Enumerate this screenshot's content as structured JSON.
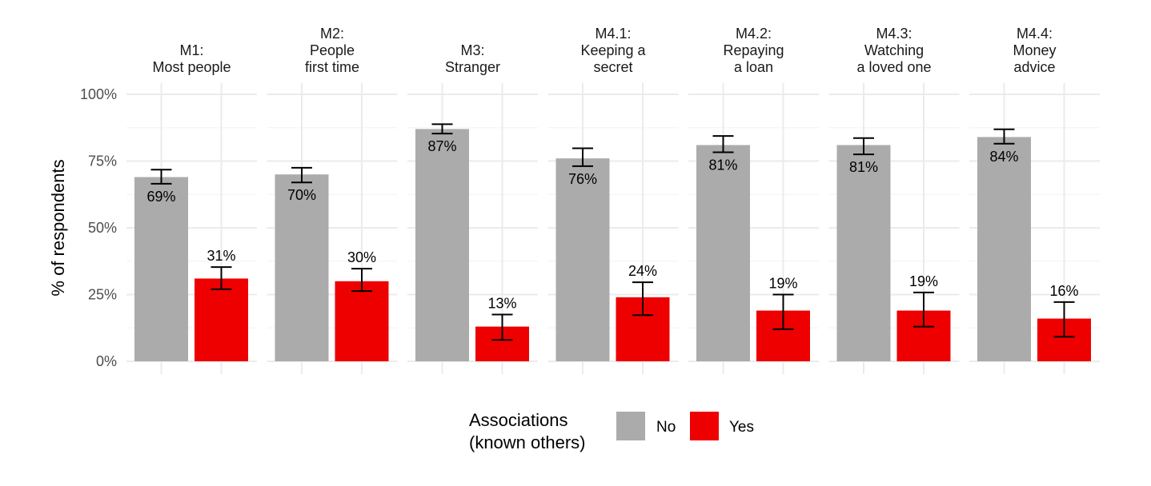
{
  "chart_data": {
    "type": "bar",
    "ylabel": "% of respondents",
    "ylim": [
      0,
      100
    ],
    "yticks": [
      0,
      25,
      50,
      75,
      100
    ],
    "ytick_labels": [
      "0%",
      "25%",
      "50%",
      "75%",
      "100%"
    ],
    "grid": true,
    "legend": {
      "title_lines": [
        "Associations",
        "(known others)"
      ],
      "placement": "bottom",
      "entries": [
        {
          "name": "No",
          "color": "#ABABAB"
        },
        {
          "name": "Yes",
          "color": "#EE0000"
        }
      ]
    },
    "facets": [
      {
        "title": [
          "M1:",
          "Most people"
        ],
        "bars": [
          {
            "group": "No",
            "value": 69,
            "label": "69%",
            "ci": [
              66.5,
              71.8
            ]
          },
          {
            "group": "Yes",
            "value": 31,
            "label": "31%",
            "ci": [
              27.0,
              35.3
            ]
          }
        ]
      },
      {
        "title": [
          "M2:",
          "People",
          "first time"
        ],
        "bars": [
          {
            "group": "No",
            "value": 70,
            "label": "70%",
            "ci": [
              67.0,
              72.5
            ]
          },
          {
            "group": "Yes",
            "value": 30,
            "label": "30%",
            "ci": [
              26.3,
              34.7
            ]
          }
        ]
      },
      {
        "title": [
          "M3:",
          "Stranger"
        ],
        "bars": [
          {
            "group": "No",
            "value": 87,
            "label": "87%",
            "ci": [
              85.3,
              88.8
            ]
          },
          {
            "group": "Yes",
            "value": 13,
            "label": "13%",
            "ci": [
              8.0,
              17.5
            ]
          }
        ]
      },
      {
        "title": [
          "M4.1:",
          "Keeping a",
          "secret"
        ],
        "bars": [
          {
            "group": "No",
            "value": 76,
            "label": "76%",
            "ci": [
              73.1,
              79.8
            ]
          },
          {
            "group": "Yes",
            "value": 24,
            "label": "24%",
            "ci": [
              17.3,
              29.6
            ]
          }
        ]
      },
      {
        "title": [
          "M4.2:",
          "Repaying",
          "a loan"
        ],
        "bars": [
          {
            "group": "No",
            "value": 81,
            "label": "81%",
            "ci": [
              78.3,
              84.4
            ]
          },
          {
            "group": "Yes",
            "value": 19,
            "label": "19%",
            "ci": [
              12.0,
              25.0
            ]
          }
        ]
      },
      {
        "title": [
          "M4.3:",
          "Watching",
          "a loved one"
        ],
        "bars": [
          {
            "group": "No",
            "value": 81,
            "label": "81%",
            "ci": [
              77.5,
              83.6
            ]
          },
          {
            "group": "Yes",
            "value": 19,
            "label": "19%",
            "ci": [
              13.0,
              25.8
            ]
          }
        ]
      },
      {
        "title": [
          "M4.4:",
          "Money",
          "advice"
        ],
        "bars": [
          {
            "group": "No",
            "value": 84,
            "label": "84%",
            "ci": [
              81.5,
              86.9
            ]
          },
          {
            "group": "Yes",
            "value": 16,
            "label": "16%",
            "ci": [
              9.2,
              22.2
            ]
          }
        ]
      }
    ]
  }
}
